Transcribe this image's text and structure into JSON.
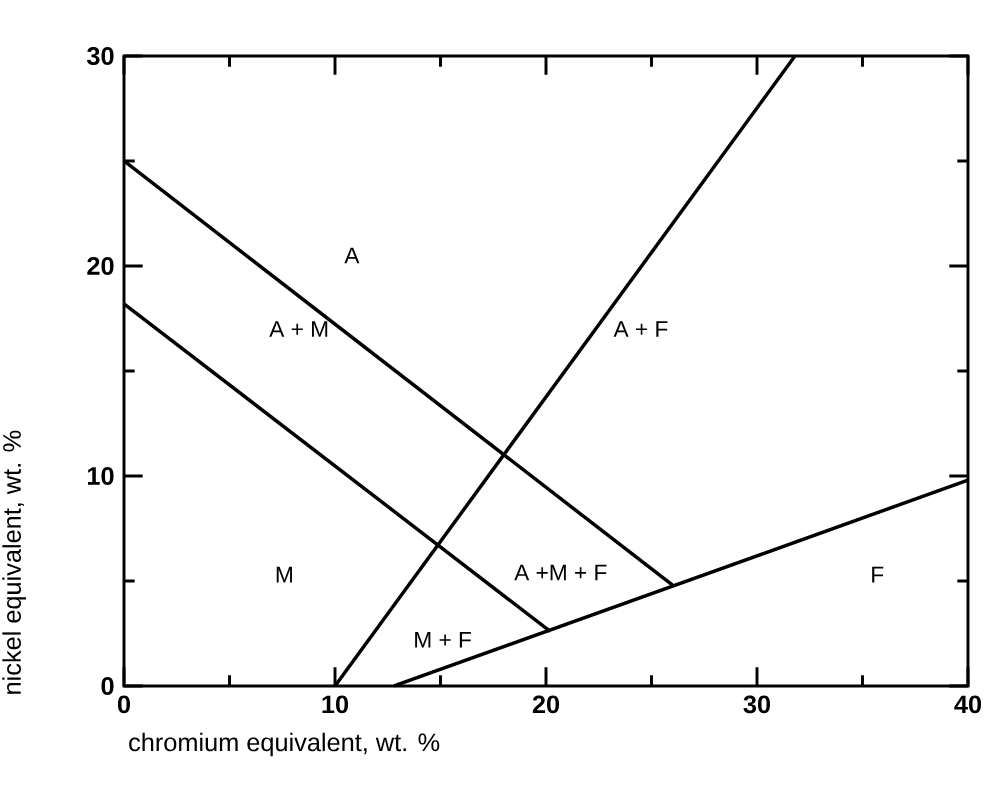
{
  "chart_data": {
    "type": "line",
    "xlabel": "chromium equivalent, wt. %",
    "ylabel": "nickel equivalent, wt. %",
    "xlim": [
      0,
      40
    ],
    "ylim": [
      0,
      30
    ],
    "xticks": [
      0,
      {
        "value": 5,
        "label": null
      },
      10,
      {
        "value": 15,
        "label": null
      },
      20,
      {
        "value": 25,
        "label": null
      },
      30,
      {
        "value": 35,
        "label": null
      },
      40
    ],
    "yticks": [
      0,
      {
        "value": 5,
        "label": null
      },
      10,
      {
        "value": 15,
        "label": null
      },
      20,
      {
        "value": 25,
        "label": null
      },
      30
    ],
    "marker": "none",
    "line_style": "solid",
    "grid": false,
    "series": [
      {
        "color": "#000000",
        "x": [
          0,
          26
        ],
        "values": [
          25,
          4.8
        ]
      },
      {
        "color": "#000000",
        "x": [
          0,
          20.2
        ],
        "values": [
          18.2,
          2.6
        ]
      },
      {
        "color": "#000000",
        "x": [
          12.8,
          40
        ],
        "values": [
          0,
          9.8
        ]
      },
      {
        "color": "#000000",
        "x": [
          10,
          31.8
        ],
        "values": [
          0,
          30
        ]
      }
    ],
    "annotations": [
      "A",
      "A + M",
      "A + F",
      "M",
      "A +M + F",
      "M + F",
      "F"
    ]
  }
}
